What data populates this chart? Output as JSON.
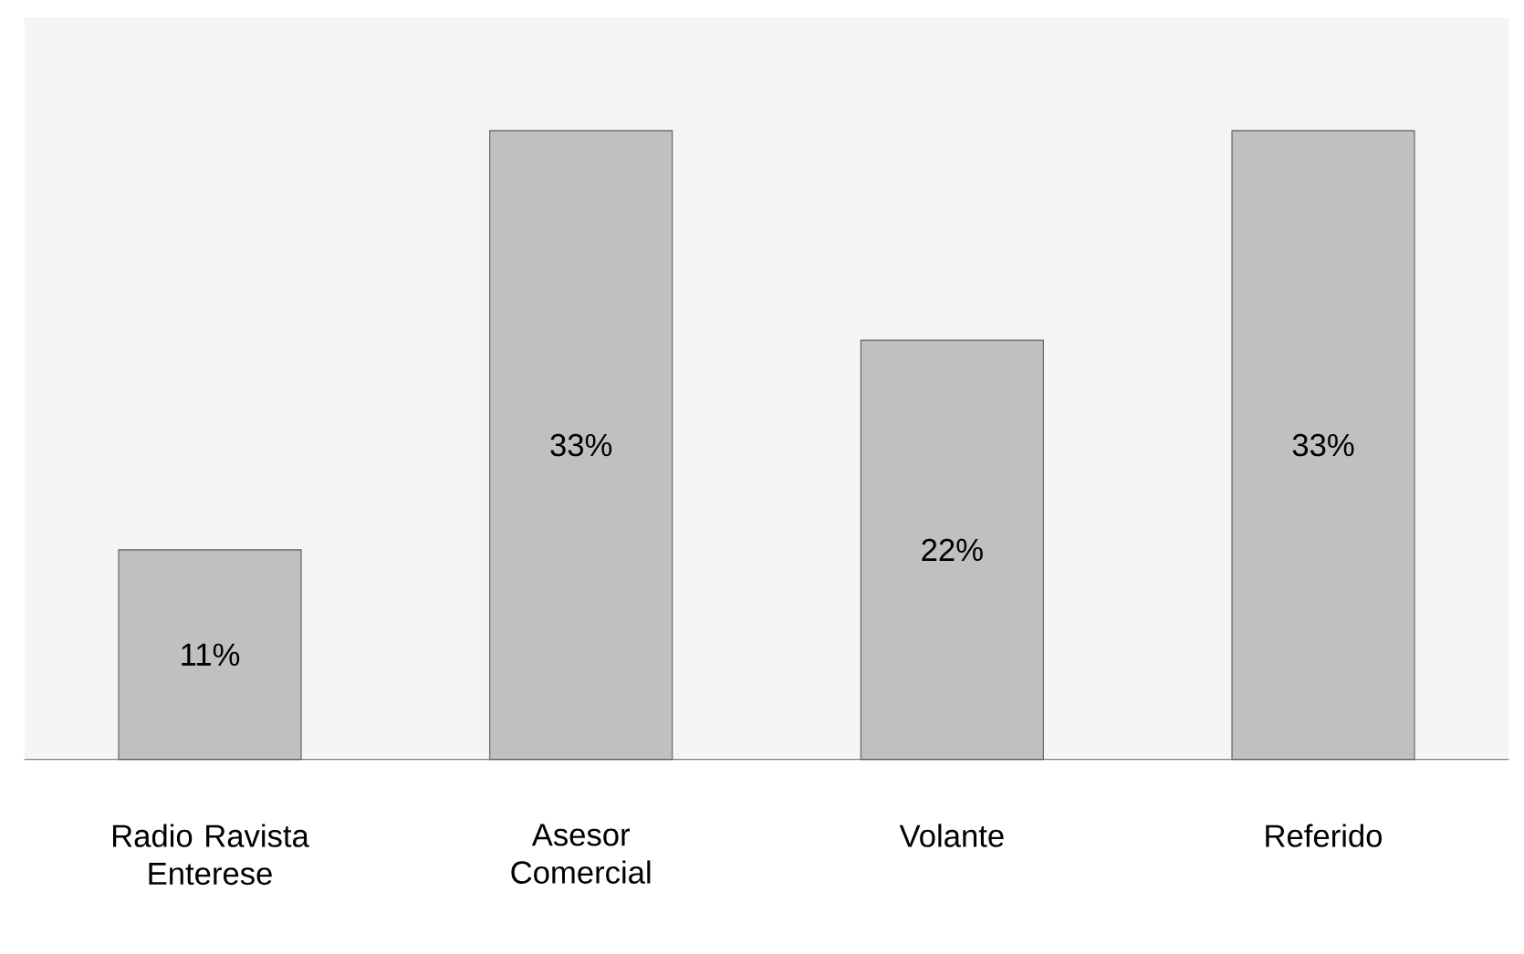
{
  "chart_data": {
    "type": "bar",
    "categories": [
      "Radio Ravista Enterese",
      "Asesor Comercial",
      "Volante",
      "Referido"
    ],
    "values": [
      11,
      33,
      22,
      33
    ],
    "value_labels": [
      "11%",
      "33%",
      "22%",
      "33%"
    ],
    "color": "#c0c0c0"
  }
}
